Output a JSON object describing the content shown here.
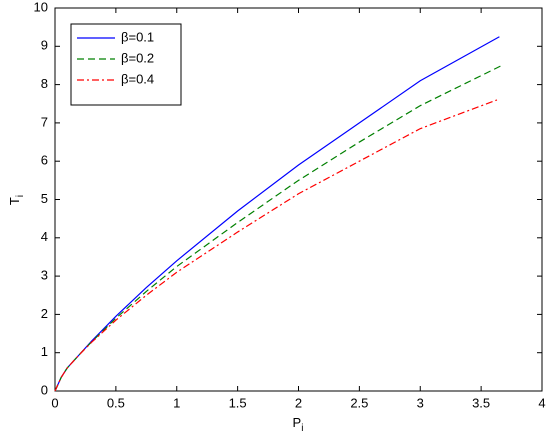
{
  "chart_data": {
    "type": "line",
    "xlabel": {
      "main": "P",
      "sub": "i"
    },
    "ylabel": {
      "main": "T",
      "sub": "i"
    },
    "xlim": [
      0,
      4
    ],
    "ylim": [
      0,
      10
    ],
    "xticks": [
      0,
      0.5,
      1,
      1.5,
      2,
      2.5,
      3,
      3.5,
      4
    ],
    "yticks": [
      0,
      1,
      2,
      3,
      4,
      5,
      6,
      7,
      8,
      9,
      10
    ],
    "legend": "upper-left",
    "series": [
      {
        "name": "β=0.1",
        "color": "#0000ff",
        "dash": "solid",
        "x": [
          0,
          0.05,
          0.1,
          0.2,
          0.3,
          0.5,
          0.75,
          1,
          1.5,
          2,
          2.5,
          3,
          3.65
        ],
        "values": [
          0,
          0.35,
          0.6,
          0.95,
          1.3,
          1.95,
          2.7,
          3.4,
          4.7,
          5.9,
          7.0,
          8.1,
          9.25
        ]
      },
      {
        "name": "β=0.2",
        "color": "#008000",
        "dash": "dashed",
        "x": [
          0,
          0.05,
          0.1,
          0.2,
          0.3,
          0.5,
          0.75,
          1,
          1.5,
          2,
          2.5,
          3,
          3.67
        ],
        "values": [
          0,
          0.35,
          0.6,
          0.95,
          1.28,
          1.9,
          2.6,
          3.25,
          4.4,
          5.5,
          6.5,
          7.45,
          8.5
        ]
      },
      {
        "name": "β=0.4",
        "color": "#ff0000",
        "dash": "dashdot",
        "x": [
          0,
          0.05,
          0.1,
          0.2,
          0.3,
          0.5,
          0.75,
          1,
          1.5,
          2,
          2.5,
          3,
          3.63
        ],
        "values": [
          0,
          0.35,
          0.6,
          0.95,
          1.27,
          1.85,
          2.5,
          3.1,
          4.15,
          5.15,
          6.0,
          6.85,
          7.6
        ]
      }
    ]
  }
}
